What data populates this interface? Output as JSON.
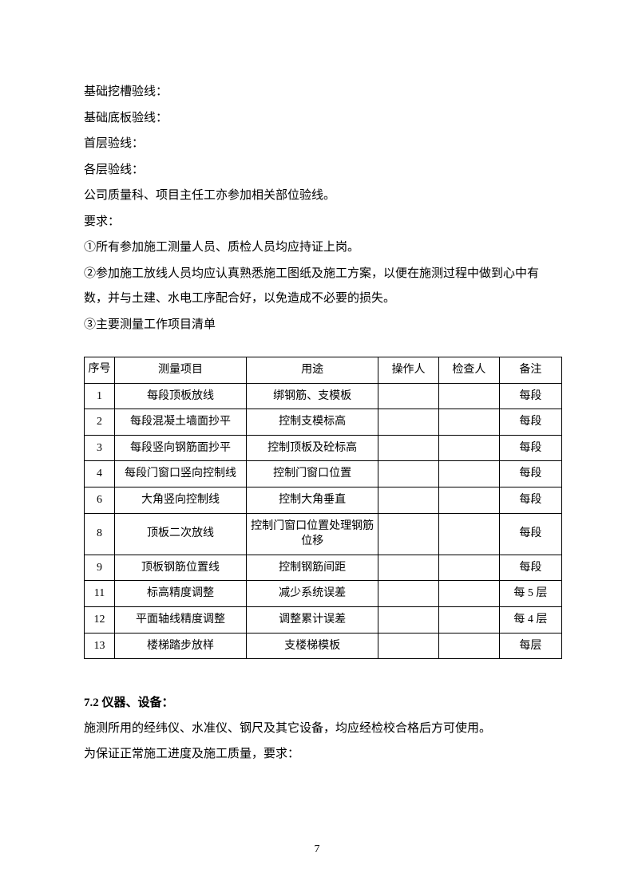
{
  "paragraphs": {
    "p1": "基础挖槽验线：",
    "p2": "基础底板验线：",
    "p3": "首层验线：",
    "p4": "各层验线：",
    "p5": "公司质量科、项目主任工亦参加相关部位验线。",
    "p6": "要求：",
    "p7": "①所有参加施工测量人员、质检人员均应持证上岗。",
    "p8": "②参加施工放线人员均应认真熟悉施工图纸及施工方案，以便在施测过程中做到心中有数，并与土建、水电工序配合好，以免造成不必要的损失。",
    "p9": "③主要测量工作项目清单"
  },
  "table": {
    "headers": {
      "seq": "序号",
      "item": "测量项目",
      "use": "用途",
      "operator": "操作人",
      "inspector": "检查人",
      "note": "备注"
    },
    "rows": [
      {
        "seq": "1",
        "item": "每段顶板放线",
        "use": "绑钢筋、支模板",
        "operator": "",
        "inspector": "",
        "note": "每段"
      },
      {
        "seq": "2",
        "item": "每段混凝土墙面抄平",
        "use": "控制支模标高",
        "operator": "",
        "inspector": "",
        "note": "每段"
      },
      {
        "seq": "3",
        "item": "每段竖向钢筋面抄平",
        "use": "控制顶板及砼标高",
        "operator": "",
        "inspector": "",
        "note": "每段"
      },
      {
        "seq": "4",
        "item": "每段门窗口竖向控制线",
        "use": "控制门窗口位置",
        "operator": "",
        "inspector": "",
        "note": "每段"
      },
      {
        "seq": "6",
        "item": "大角竖向控制线",
        "use": "控制大角垂直",
        "operator": "",
        "inspector": "",
        "note": "每段"
      },
      {
        "seq": "8",
        "item": "顶板二次放线",
        "use": "控制门窗口位置处理钢筋位移",
        "operator": "",
        "inspector": "",
        "note": "每段"
      },
      {
        "seq": "9",
        "item": "顶板钢筋位置线",
        "use": "控制钢筋间距",
        "operator": "",
        "inspector": "",
        "note": "每段"
      },
      {
        "seq": "11",
        "item": "标高精度调整",
        "use": "减少系统误差",
        "operator": "",
        "inspector": "",
        "note": "每 5 层"
      },
      {
        "seq": "12",
        "item": "平面轴线精度调整",
        "use": "调整累计误差",
        "operator": "",
        "inspector": "",
        "note": "每 4 层"
      },
      {
        "seq": "13",
        "item": "楼梯踏步放样",
        "use": "支楼梯模板",
        "operator": "",
        "inspector": "",
        "note": "每层"
      }
    ]
  },
  "section": {
    "heading": "7.2 仪器、设备：",
    "body1": "施测所用的经纬仪、水准仪、钢尺及其它设备，均应经检校合格后方可使用。",
    "body2": "为保证正常施工进度及施工质量，要求："
  },
  "page_number": "7"
}
